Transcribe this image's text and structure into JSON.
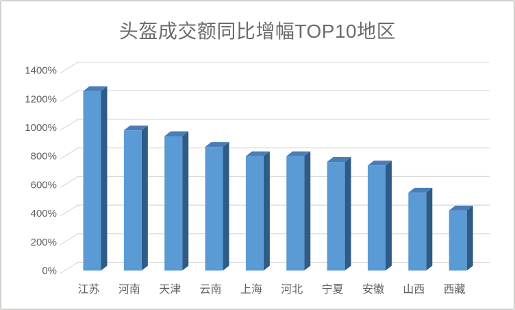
{
  "chart_data": {
    "type": "bar",
    "style": "3d-column",
    "title": "头盔成交额同比增幅TOP10地区",
    "categories": [
      "江苏",
      "河南",
      "天津",
      "云南",
      "上海",
      "河北",
      "宁夏",
      "安徽",
      "山西",
      "西藏"
    ],
    "values": [
      1255,
      980,
      940,
      865,
      800,
      800,
      760,
      735,
      545,
      420
    ],
    "unit": "%",
    "xlabel": "",
    "ylabel": "",
    "ylim": [
      0,
      1400
    ],
    "ytick_step": 200,
    "ytick_labels": [
      "0%",
      "200%",
      "400%",
      "600%",
      "800%",
      "1000%",
      "1200%",
      "1400%"
    ],
    "grid": true,
    "legend": false
  },
  "colors": {
    "bar_front": "#5B9BD5",
    "bar_top": "#4A7DB8",
    "bar_side": "#2E5C86",
    "gridline": "#D9D9D9",
    "axis_text": "#5F5F5F",
    "title_text": "#6B6B6B",
    "border": "#D2D0CE",
    "background": "#FFFFFF"
  }
}
